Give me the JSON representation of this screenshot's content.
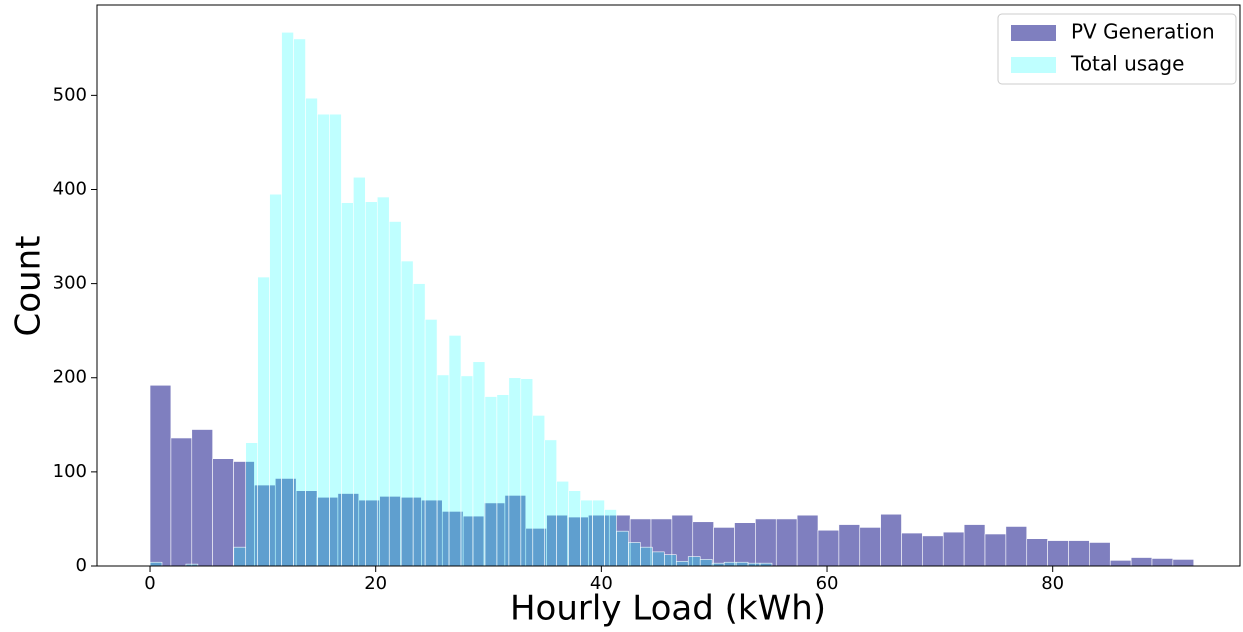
{
  "chart_data": {
    "type": "histogram",
    "x_label": "Hourly Load (kWh)",
    "y_label": "Count",
    "xlim": [
      -4.7,
      96.6
    ],
    "ylim": [
      0,
      596
    ],
    "xticks": [
      0,
      20,
      40,
      60,
      80
    ],
    "yticks": [
      0,
      100,
      200,
      300,
      400,
      500
    ],
    "legend": "upper right",
    "series": [
      {
        "name": "PV Generation",
        "color": "#000080",
        "alpha": 0.5,
        "bins": [
          0,
          1.85,
          3.7,
          5.55,
          7.4,
          9.25,
          11.1,
          12.95,
          14.8,
          16.65,
          18.5,
          20.35,
          22.2,
          24.05,
          25.9,
          27.75,
          29.6,
          31.45,
          33.3,
          35.15,
          37,
          38.85,
          40.7,
          42.55,
          44.4,
          46.25,
          48.1,
          49.95,
          51.8,
          53.65,
          55.5,
          57.35,
          59.2,
          61.05,
          62.9,
          64.75,
          66.6,
          68.45,
          70.3,
          72.15,
          74,
          75.85,
          77.7,
          79.55,
          81.4,
          83.25,
          85.1,
          86.95,
          88.8,
          90.65,
          92.5
        ],
        "values": [
          192,
          136,
          145,
          114,
          111,
          86,
          93,
          80,
          73,
          77,
          70,
          74,
          73,
          70,
          58,
          53,
          67,
          75,
          40,
          54,
          52,
          54,
          54,
          50,
          50,
          54,
          47,
          41,
          46,
          50,
          50,
          54,
          38,
          44,
          41,
          55,
          35,
          32,
          36,
          44,
          34,
          42,
          29,
          27,
          27,
          25,
          6,
          9,
          8,
          7
        ]
      },
      {
        "name": "Total usage",
        "color": "#00ffff",
        "alpha": 0.25,
        "bins": [
          0,
          1.06,
          2.12,
          3.18,
          4.24,
          5.3,
          6.36,
          7.42,
          8.48,
          9.54,
          10.6,
          11.66,
          12.72,
          13.78,
          14.84,
          15.9,
          16.96,
          18.02,
          19.08,
          20.14,
          21.2,
          22.26,
          23.32,
          24.38,
          25.44,
          26.5,
          27.56,
          28.62,
          29.68,
          30.74,
          31.8,
          32.86,
          33.92,
          34.98,
          36.04,
          37.1,
          38.16,
          39.22,
          40.28,
          41.34,
          42.4,
          43.46,
          44.52,
          45.58,
          46.64,
          47.7,
          48.76,
          49.82,
          50.88,
          51.94,
          53,
          54.06,
          55.12
        ],
        "values": [
          4,
          0,
          0,
          2,
          0,
          0,
          0,
          20,
          131,
          307,
          395,
          567,
          560,
          497,
          480,
          480,
          386,
          413,
          387,
          392,
          366,
          324,
          300,
          262,
          203,
          245,
          202,
          217,
          180,
          182,
          200,
          199,
          160,
          134,
          90,
          80,
          70,
          70,
          60,
          37,
          25,
          20,
          15,
          12,
          5,
          10,
          7,
          3,
          4,
          4,
          3,
          3
        ]
      }
    ]
  }
}
